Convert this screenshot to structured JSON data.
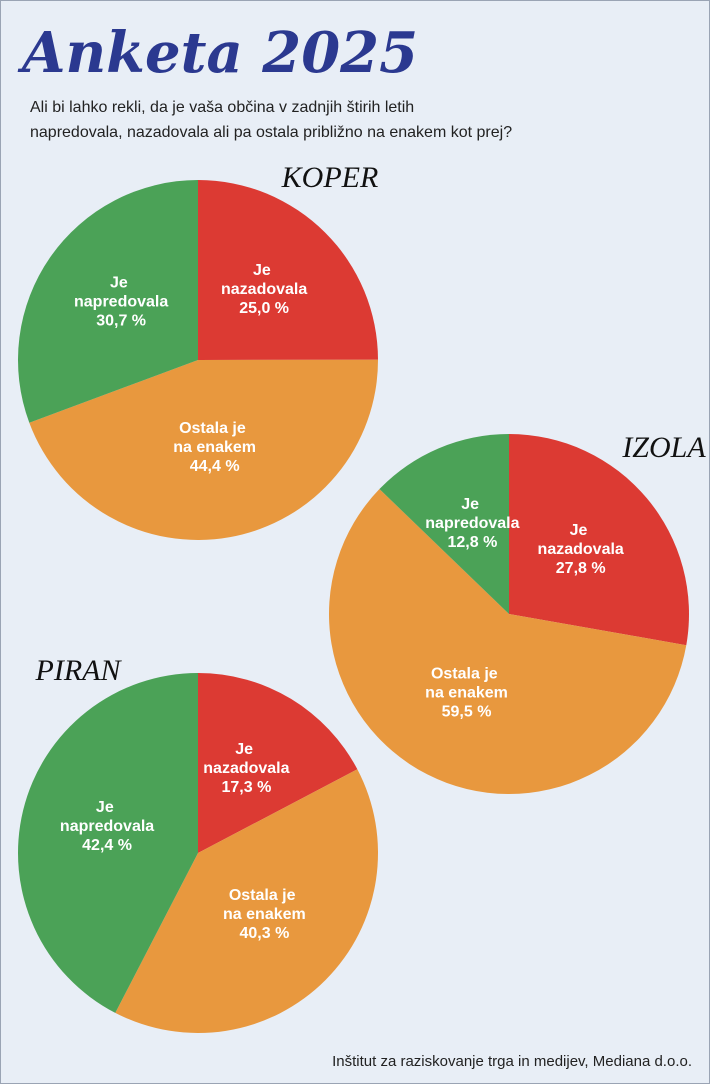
{
  "title": "Anketa 2025",
  "subtitle": [
    "Ali bi lahko rekli, da je vaša občina v zadnjih štirih letih",
    "napredovala, nazadovala ali pa ostala približno na enakem kot prej?"
  ],
  "source": "Inštitut za raziskovanje trga in medijev, Mediana d.o.o.",
  "chart_data": [
    {
      "type": "pie",
      "title": "KOPER",
      "categories": [
        "Je nazadovala",
        "Ostala je na enakem",
        "Je napredovala"
      ],
      "values": [
        25.0,
        44.4,
        30.7
      ],
      "value_labels": [
        "25,0 %",
        "44,4 %",
        "30,7 %"
      ],
      "colors": [
        "#dc3a33",
        "#e8983e",
        "#4ba257"
      ]
    },
    {
      "type": "pie",
      "title": "IZOLA",
      "categories": [
        "Je nazadovala",
        "Ostala je na enakem",
        "Je napredovala"
      ],
      "values": [
        27.8,
        59.5,
        12.8
      ],
      "value_labels": [
        "27,8 %",
        "59,5 %",
        "12,8 %"
      ],
      "colors": [
        "#dc3a33",
        "#e8983e",
        "#4ba257"
      ]
    },
    {
      "type": "pie",
      "title": "PIRAN",
      "categories": [
        "Je nazadovala",
        "Ostala je na enakem",
        "Je napredovala"
      ],
      "values": [
        17.3,
        40.3,
        42.4
      ],
      "value_labels": [
        "17,3 %",
        "40,3 %",
        "42,4 %"
      ],
      "colors": [
        "#dc3a33",
        "#e8983e",
        "#4ba257"
      ]
    }
  ]
}
